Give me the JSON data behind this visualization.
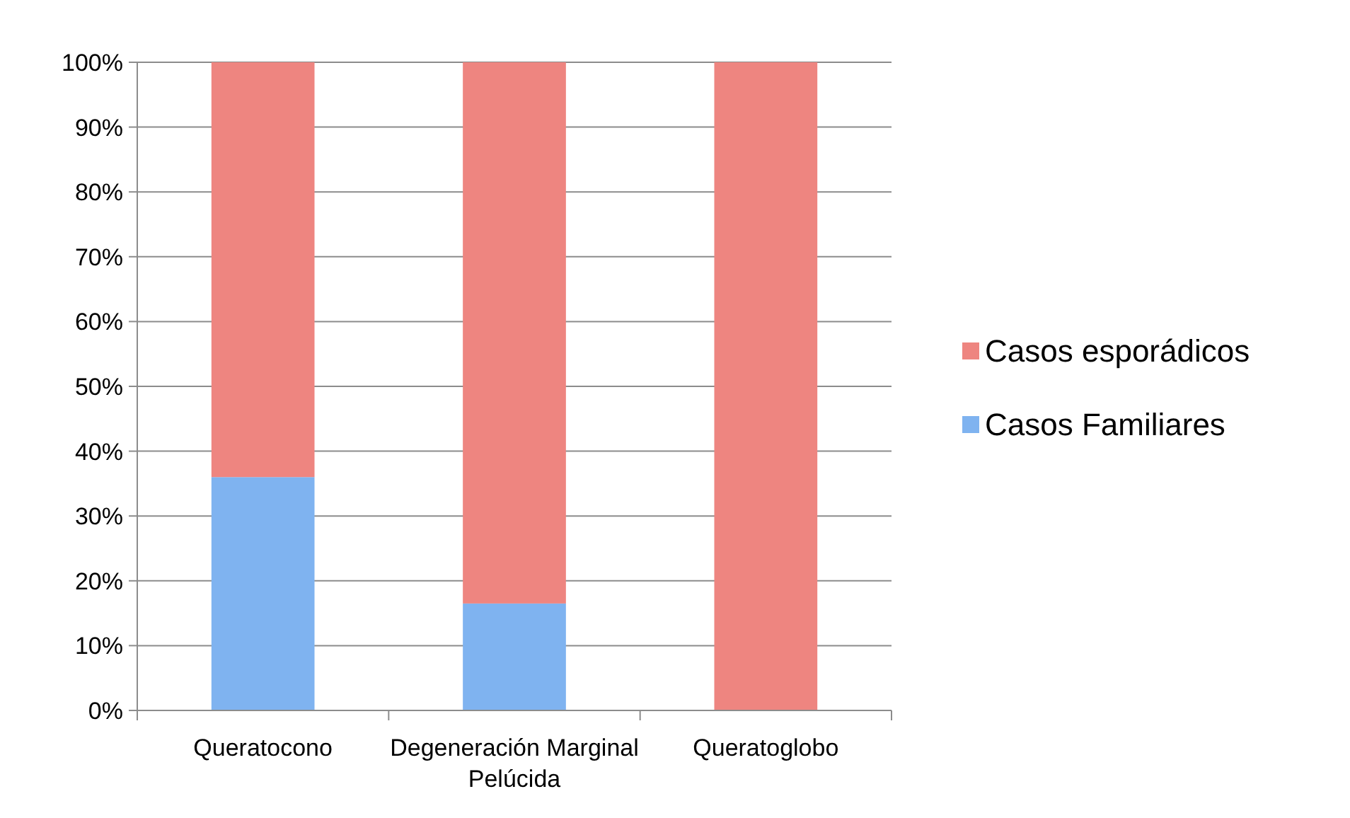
{
  "chart_data": {
    "type": "bar",
    "stacked": true,
    "categories": [
      "Queratocono",
      "Degeneración Marginal Pelúcida",
      "Queratoglobo"
    ],
    "series": [
      {
        "name": "Casos Familiares",
        "color": "#7fb3f0",
        "values": [
          36,
          16.5,
          0
        ]
      },
      {
        "name": "Casos esporádicos",
        "color": "#ee8580",
        "values": [
          64,
          83.5,
          100
        ]
      }
    ],
    "ylim": [
      0,
      100
    ],
    "yticks": [
      {
        "value": 0,
        "label": "0%"
      },
      {
        "value": 10,
        "label": "10%"
      },
      {
        "value": 20,
        "label": "20%"
      },
      {
        "value": 30,
        "label": "30%"
      },
      {
        "value": 40,
        "label": "40%"
      },
      {
        "value": 50,
        "label": "50%"
      },
      {
        "value": 60,
        "label": "60%"
      },
      {
        "value": 70,
        "label": "70%"
      },
      {
        "value": 80,
        "label": "80%"
      },
      {
        "value": 90,
        "label": "90%"
      },
      {
        "value": 100,
        "label": "100%"
      }
    ],
    "grid": "y",
    "legend": "right"
  }
}
